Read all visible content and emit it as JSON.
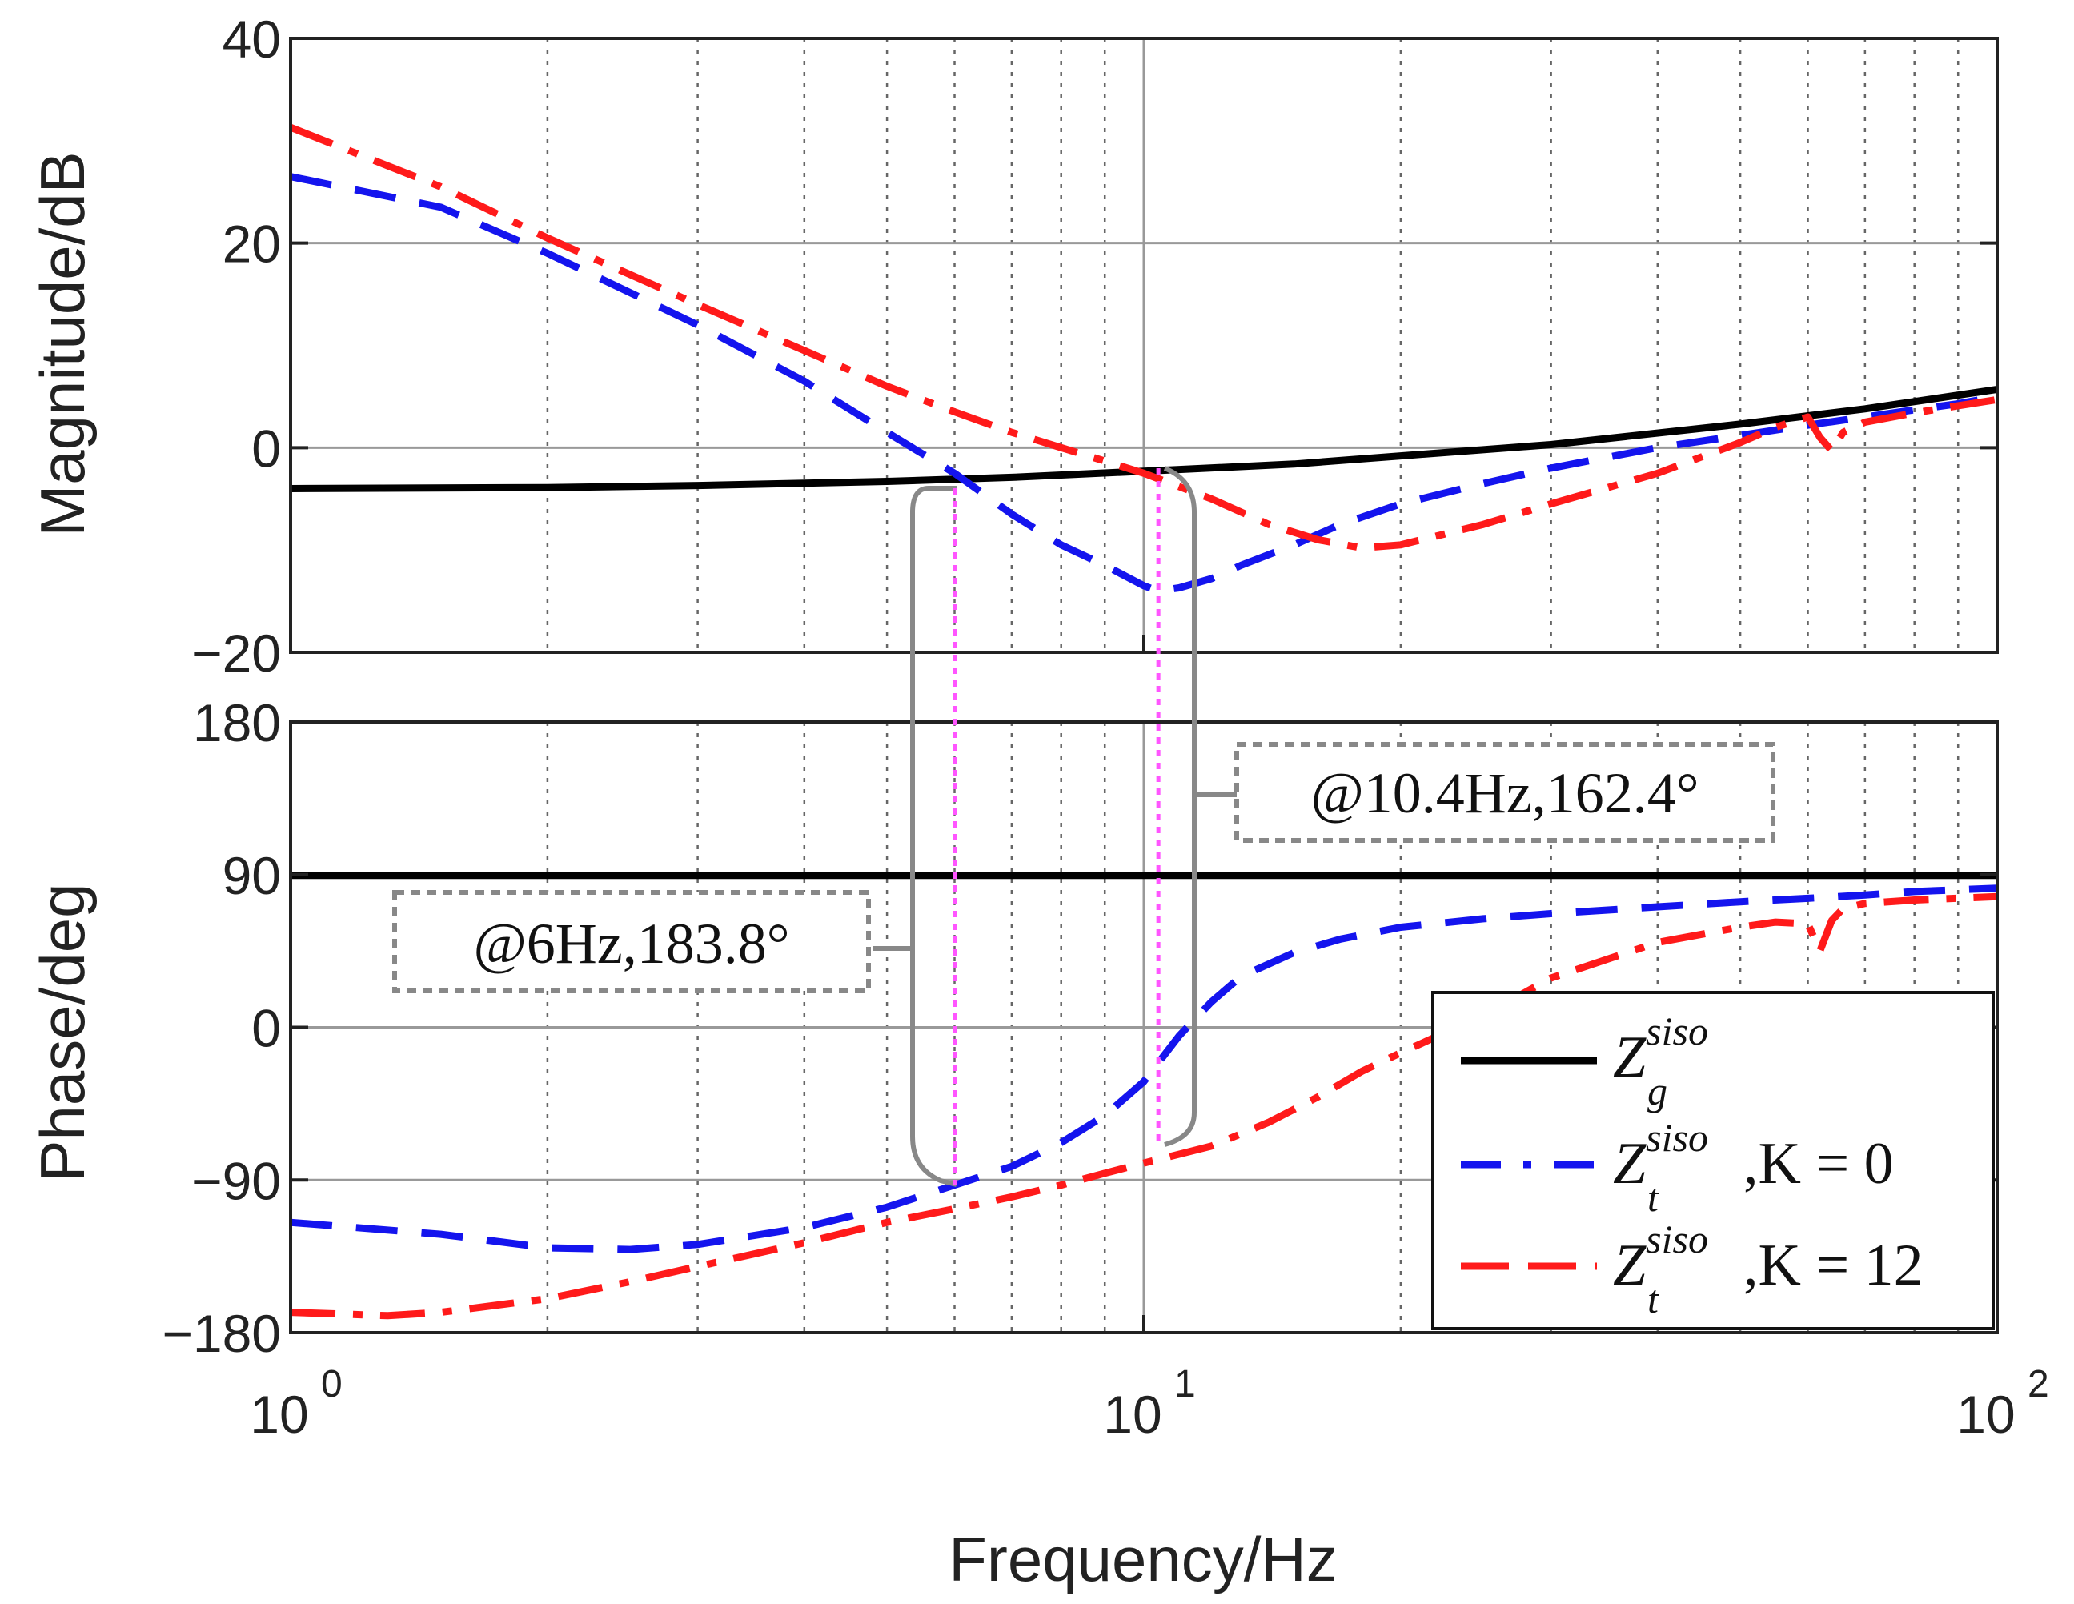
{
  "chart_data": {
    "type": "line",
    "subtype": "bode",
    "xscale": "log",
    "xlim": [
      1,
      100
    ],
    "xlabel": "Frequency/Hz",
    "xticks": [
      {
        "value": 1,
        "base": "10",
        "exp": "0"
      },
      {
        "value": 10,
        "base": "10",
        "exp": "1"
      },
      {
        "value": 100,
        "base": "10",
        "exp": "2"
      }
    ],
    "magnitude": {
      "ylabel": "Magnitude/dB",
      "ylim": [
        -20,
        40
      ],
      "yticks": [
        {
          "value": 40,
          "label": "40"
        },
        {
          "value": 20,
          "label": "20"
        },
        {
          "value": 0,
          "label": "0"
        },
        {
          "value": -20,
          "label": "−20"
        }
      ],
      "series": [
        {
          "name": "Zg",
          "color": "#000000",
          "dash": "solid",
          "x": [
            1,
            2,
            3,
            5,
            7,
            10,
            15,
            20,
            30,
            50,
            70,
            100
          ],
          "y": [
            -4,
            -3.9,
            -3.7,
            -3.3,
            -2.9,
            -2.3,
            -1.6,
            -0.8,
            0.3,
            2.3,
            3.8,
            5.7
          ]
        },
        {
          "name": "Zt K=0",
          "color": "#1414ee",
          "dash": "dash",
          "x": [
            1,
            1.5,
            2,
            3,
            4,
            5,
            6,
            7,
            8,
            9,
            10,
            10.4,
            11,
            12,
            13,
            15,
            17,
            20,
            25,
            30,
            40,
            50,
            60,
            70,
            80,
            90,
            100
          ],
          "y": [
            26.5,
            23.5,
            19,
            12,
            6.5,
            1.5,
            -2.5,
            -6.5,
            -9.5,
            -11.5,
            -13.5,
            -14,
            -13.7,
            -12.8,
            -11.5,
            -9.5,
            -7.5,
            -5.5,
            -3.5,
            -2,
            0,
            1.2,
            2.2,
            3.0,
            3.7,
            4.3,
            5.0
          ]
        },
        {
          "name": "Zt K=12",
          "color": "#ff1a1a",
          "dash": "dashdot",
          "x": [
            1,
            1.5,
            2,
            3,
            4,
            5,
            6,
            7,
            8,
            9,
            10,
            12,
            14,
            16,
            18,
            20,
            25,
            30,
            40,
            50,
            55,
            60,
            62,
            64,
            66,
            70,
            80,
            90,
            100
          ],
          "y": [
            31.3,
            25.5,
            20.5,
            14,
            9.5,
            6,
            3.5,
            1.5,
            0,
            -1.3,
            -2.5,
            -5,
            -7.5,
            -9,
            -9.8,
            -9.5,
            -7.5,
            -5.5,
            -2.5,
            0.5,
            2,
            3.0,
            1.0,
            -0.3,
            1.5,
            2.5,
            3.4,
            4.1,
            4.7
          ]
        }
      ]
    },
    "phase": {
      "ylabel": "Phase/deg",
      "ylim": [
        -180,
        180
      ],
      "yticks": [
        {
          "value": 180,
          "label": "180"
        },
        {
          "value": 90,
          "label": "90"
        },
        {
          "value": 0,
          "label": "0"
        },
        {
          "value": -90,
          "label": "−90"
        },
        {
          "value": -180,
          "label": "−180"
        }
      ],
      "series": [
        {
          "name": "Zg",
          "color": "#000000",
          "dash": "solid",
          "x": [
            1,
            100
          ],
          "y": [
            89.5,
            89.5
          ]
        },
        {
          "name": "Zt K=0",
          "color": "#1414ee",
          "dash": "dash",
          "x": [
            1,
            1.5,
            2,
            2.5,
            3,
            4,
            5,
            6,
            7,
            8,
            9,
            10,
            11,
            12,
            13,
            15,
            17,
            20,
            25,
            30,
            40,
            50,
            60,
            70,
            80,
            100
          ],
          "y": [
            -115,
            -122,
            -130,
            -131,
            -128,
            -118,
            -106,
            -93,
            -82,
            -68,
            -52,
            -32,
            -5,
            15,
            30,
            44,
            52,
            59,
            64,
            67,
            71,
            74,
            76,
            78,
            80,
            82
          ]
        },
        {
          "name": "Zt K=12",
          "color": "#ff1a1a",
          "dash": "dashdot",
          "x": [
            1,
            1.3,
            1.5,
            2,
            2.5,
            3,
            4,
            5,
            6,
            7,
            8,
            9,
            10,
            12,
            14,
            16,
            18,
            20,
            25,
            30,
            40,
            50,
            55,
            60,
            62,
            64,
            66,
            70,
            80,
            100
          ],
          "y": [
            -168,
            -170,
            -168,
            -160,
            -150,
            -141,
            -127,
            -115,
            -107,
            -100,
            -93,
            -86,
            -80,
            -70,
            -56,
            -41,
            -26,
            -15,
            7,
            29,
            50,
            59,
            62,
            61,
            45,
            63,
            70,
            73,
            75,
            77
          ]
        }
      ]
    },
    "annotations": [
      {
        "text": "@6Hz,183.8°",
        "frequency": 6
      },
      {
        "text": "@10.4Hz,162.4°",
        "frequency": 10.4
      }
    ],
    "legend": {
      "position": "bottom-right of phase plot",
      "entries": [
        {
          "symbol": "Z",
          "sup": "siso",
          "sub": "g",
          "suffix": ""
        },
        {
          "symbol": "Z",
          "sup": "siso",
          "sub": "t",
          "suffix": ",K = 0"
        },
        {
          "symbol": "Z",
          "sup": "siso",
          "sub": "t",
          "suffix": ",K = 12"
        }
      ]
    }
  }
}
